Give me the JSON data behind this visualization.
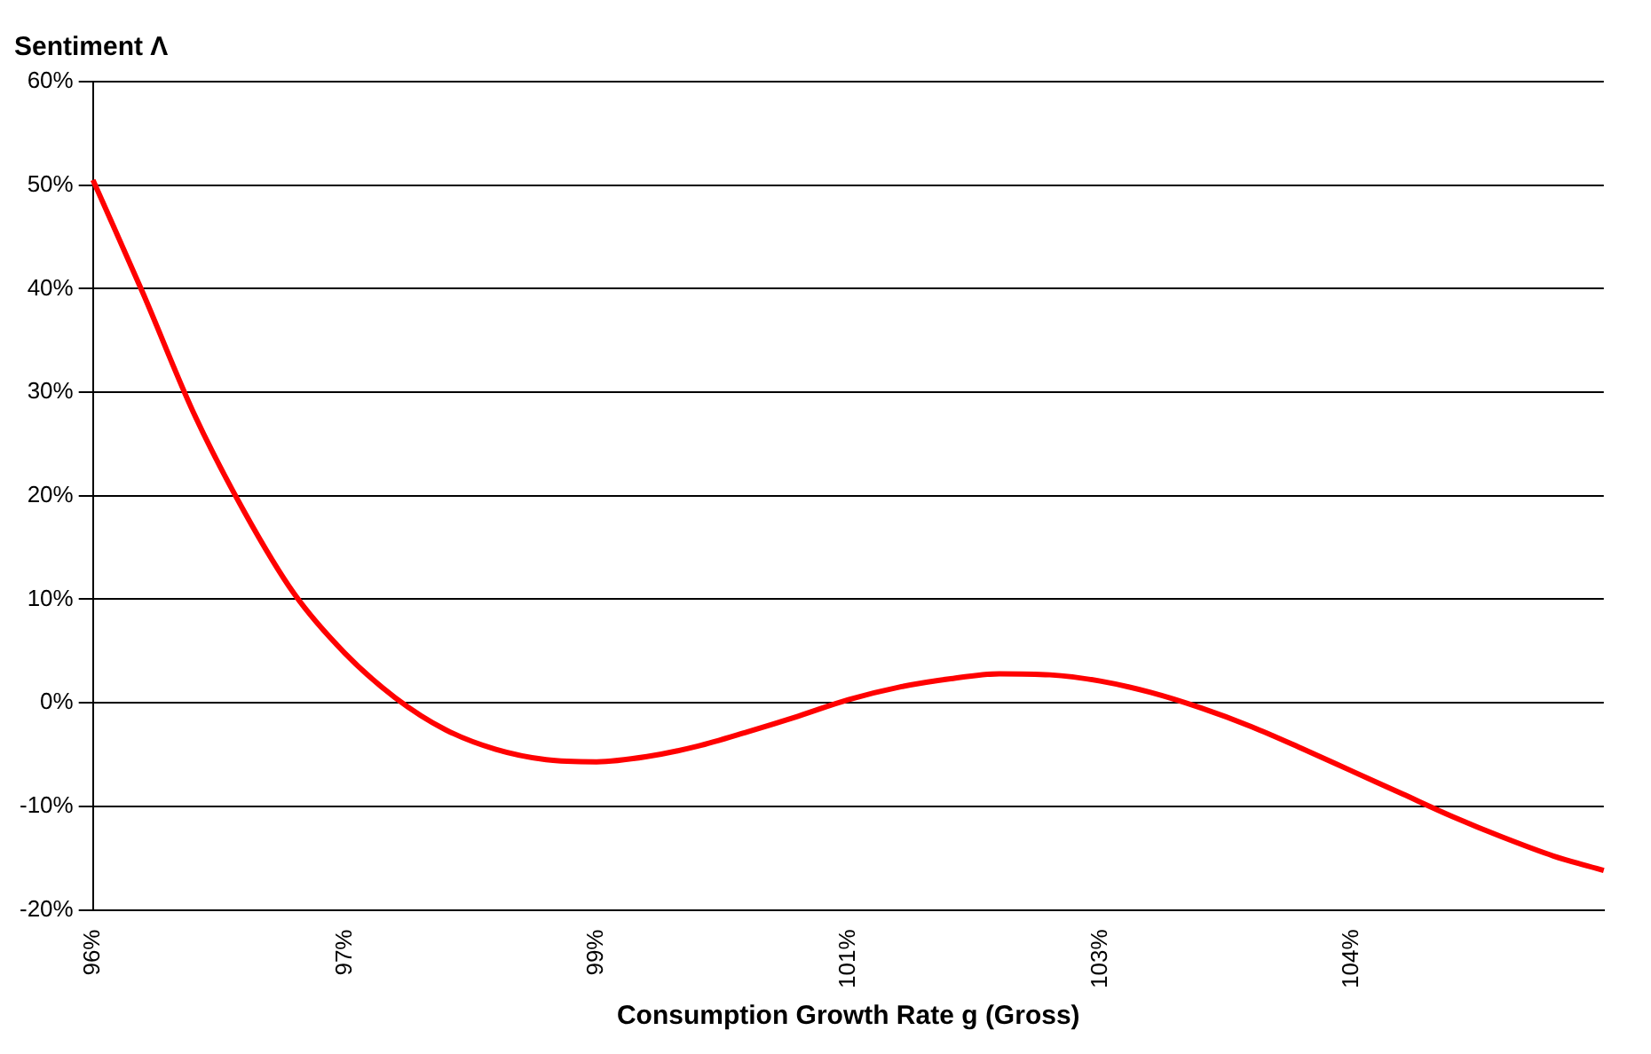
{
  "chart_data": {
    "type": "line",
    "ylabel": "Sentiment Λ",
    "xlabel": "Consumption Growth Rate g (Gross)",
    "categories": [
      "96%",
      null,
      null,
      null,
      null,
      "97%",
      null,
      null,
      null,
      null,
      "99%",
      null,
      null,
      null,
      null,
      "101%",
      null,
      null,
      null,
      null,
      "103%",
      null,
      null,
      null,
      null,
      "104%",
      null,
      null,
      null,
      null,
      null
    ],
    "series": [
      {
        "color": "#ff0000",
        "values": [
          50.5,
          39.5,
          28,
          18.5,
          10.5,
          4.8,
          0.5,
          -2.6,
          -4.5,
          -5.5,
          -5.7,
          -5.2,
          -4.2,
          -2.8,
          -1.3,
          0.3,
          1.5,
          2.3,
          2.8,
          2.7,
          2.1,
          1,
          -0.5,
          -2.3,
          -4.4,
          -6.6,
          -8.8,
          -11,
          -13,
          -14.8,
          -16.2
        ]
      }
    ],
    "ylim": [
      -20,
      60
    ],
    "yticks": [
      {
        "value": -20,
        "label": "-20%"
      },
      {
        "value": -10,
        "label": "-10%"
      },
      {
        "value": 0,
        "label": "0%"
      },
      {
        "value": 10,
        "label": "10%"
      },
      {
        "value": 20,
        "label": "20%"
      },
      {
        "value": 30,
        "label": "30%"
      },
      {
        "value": 40,
        "label": "40%"
      },
      {
        "value": 50,
        "label": "50%"
      },
      {
        "value": 60,
        "label": "60%"
      }
    ],
    "grid": "y",
    "legend": false,
    "marker": "none",
    "line_style": "solid"
  }
}
